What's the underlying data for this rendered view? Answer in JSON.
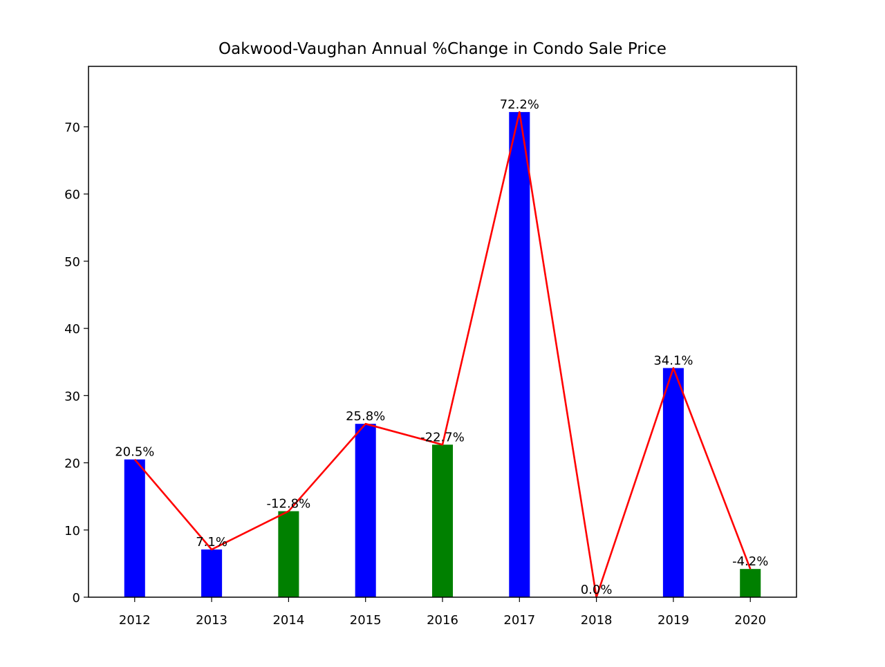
{
  "chart_data": {
    "type": "bar",
    "title": "Oakwood-Vaughan Annual %Change in Condo Sale Price",
    "xlabel": "",
    "ylabel": "",
    "categories": [
      "2012",
      "2013",
      "2014",
      "2015",
      "2016",
      "2017",
      "2018",
      "2019",
      "2020"
    ],
    "series": [
      {
        "type": "bar",
        "values": [
          20.5,
          7.1,
          12.8,
          25.8,
          22.7,
          72.2,
          0.0,
          34.1,
          4.2
        ],
        "colors": [
          "#0000ff",
          "#0000ff",
          "#008000",
          "#0000ff",
          "#008000",
          "#0000ff",
          "#0000ff",
          "#0000ff",
          "#008000"
        ]
      },
      {
        "type": "line",
        "values": [
          20.5,
          7.1,
          12.8,
          25.8,
          22.7,
          72.2,
          0.0,
          34.1,
          4.2
        ],
        "color": "#ff0000"
      }
    ],
    "data_labels": [
      "20.5%",
      "7.1%",
      "-12.8%",
      "25.8%",
      "-22.7%",
      "72.2%",
      "0.0%",
      "34.1%",
      "-4.2%"
    ],
    "yticks": [
      0,
      10,
      20,
      30,
      40,
      50,
      60,
      70
    ],
    "ylim": [
      0,
      79
    ],
    "grid": false,
    "legend": "none"
  }
}
